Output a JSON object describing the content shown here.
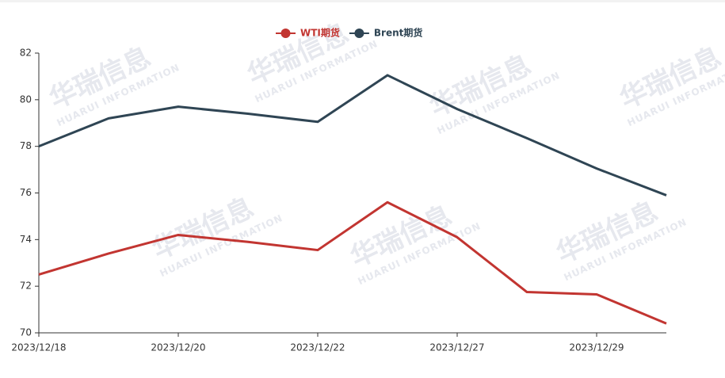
{
  "chart_data": {
    "type": "line",
    "watermark": "华瑞信息",
    "watermark_sub": "HUARUI INFORMATION",
    "categories": [
      "2023/12/18",
      null,
      "2023/12/20",
      null,
      "2023/12/22",
      null,
      "2023/12/27",
      null,
      "2023/12/29",
      null
    ],
    "series": [
      {
        "name": "WTI期货",
        "color": "#c23531",
        "values": [
          72.5,
          73.4,
          74.2,
          73.9,
          73.55,
          75.6,
          74.1,
          71.75,
          71.65,
          70.4
        ]
      },
      {
        "name": "Brent期货",
        "color": "#2f4554",
        "values": [
          78.0,
          79.2,
          79.7,
          79.4,
          79.05,
          81.05,
          79.6,
          78.35,
          77.05,
          75.9
        ]
      }
    ],
    "ylim": [
      70,
      82
    ],
    "yticks": [
      70,
      72,
      74,
      76,
      78,
      80,
      82
    ],
    "grid": false,
    "legend": "top"
  }
}
